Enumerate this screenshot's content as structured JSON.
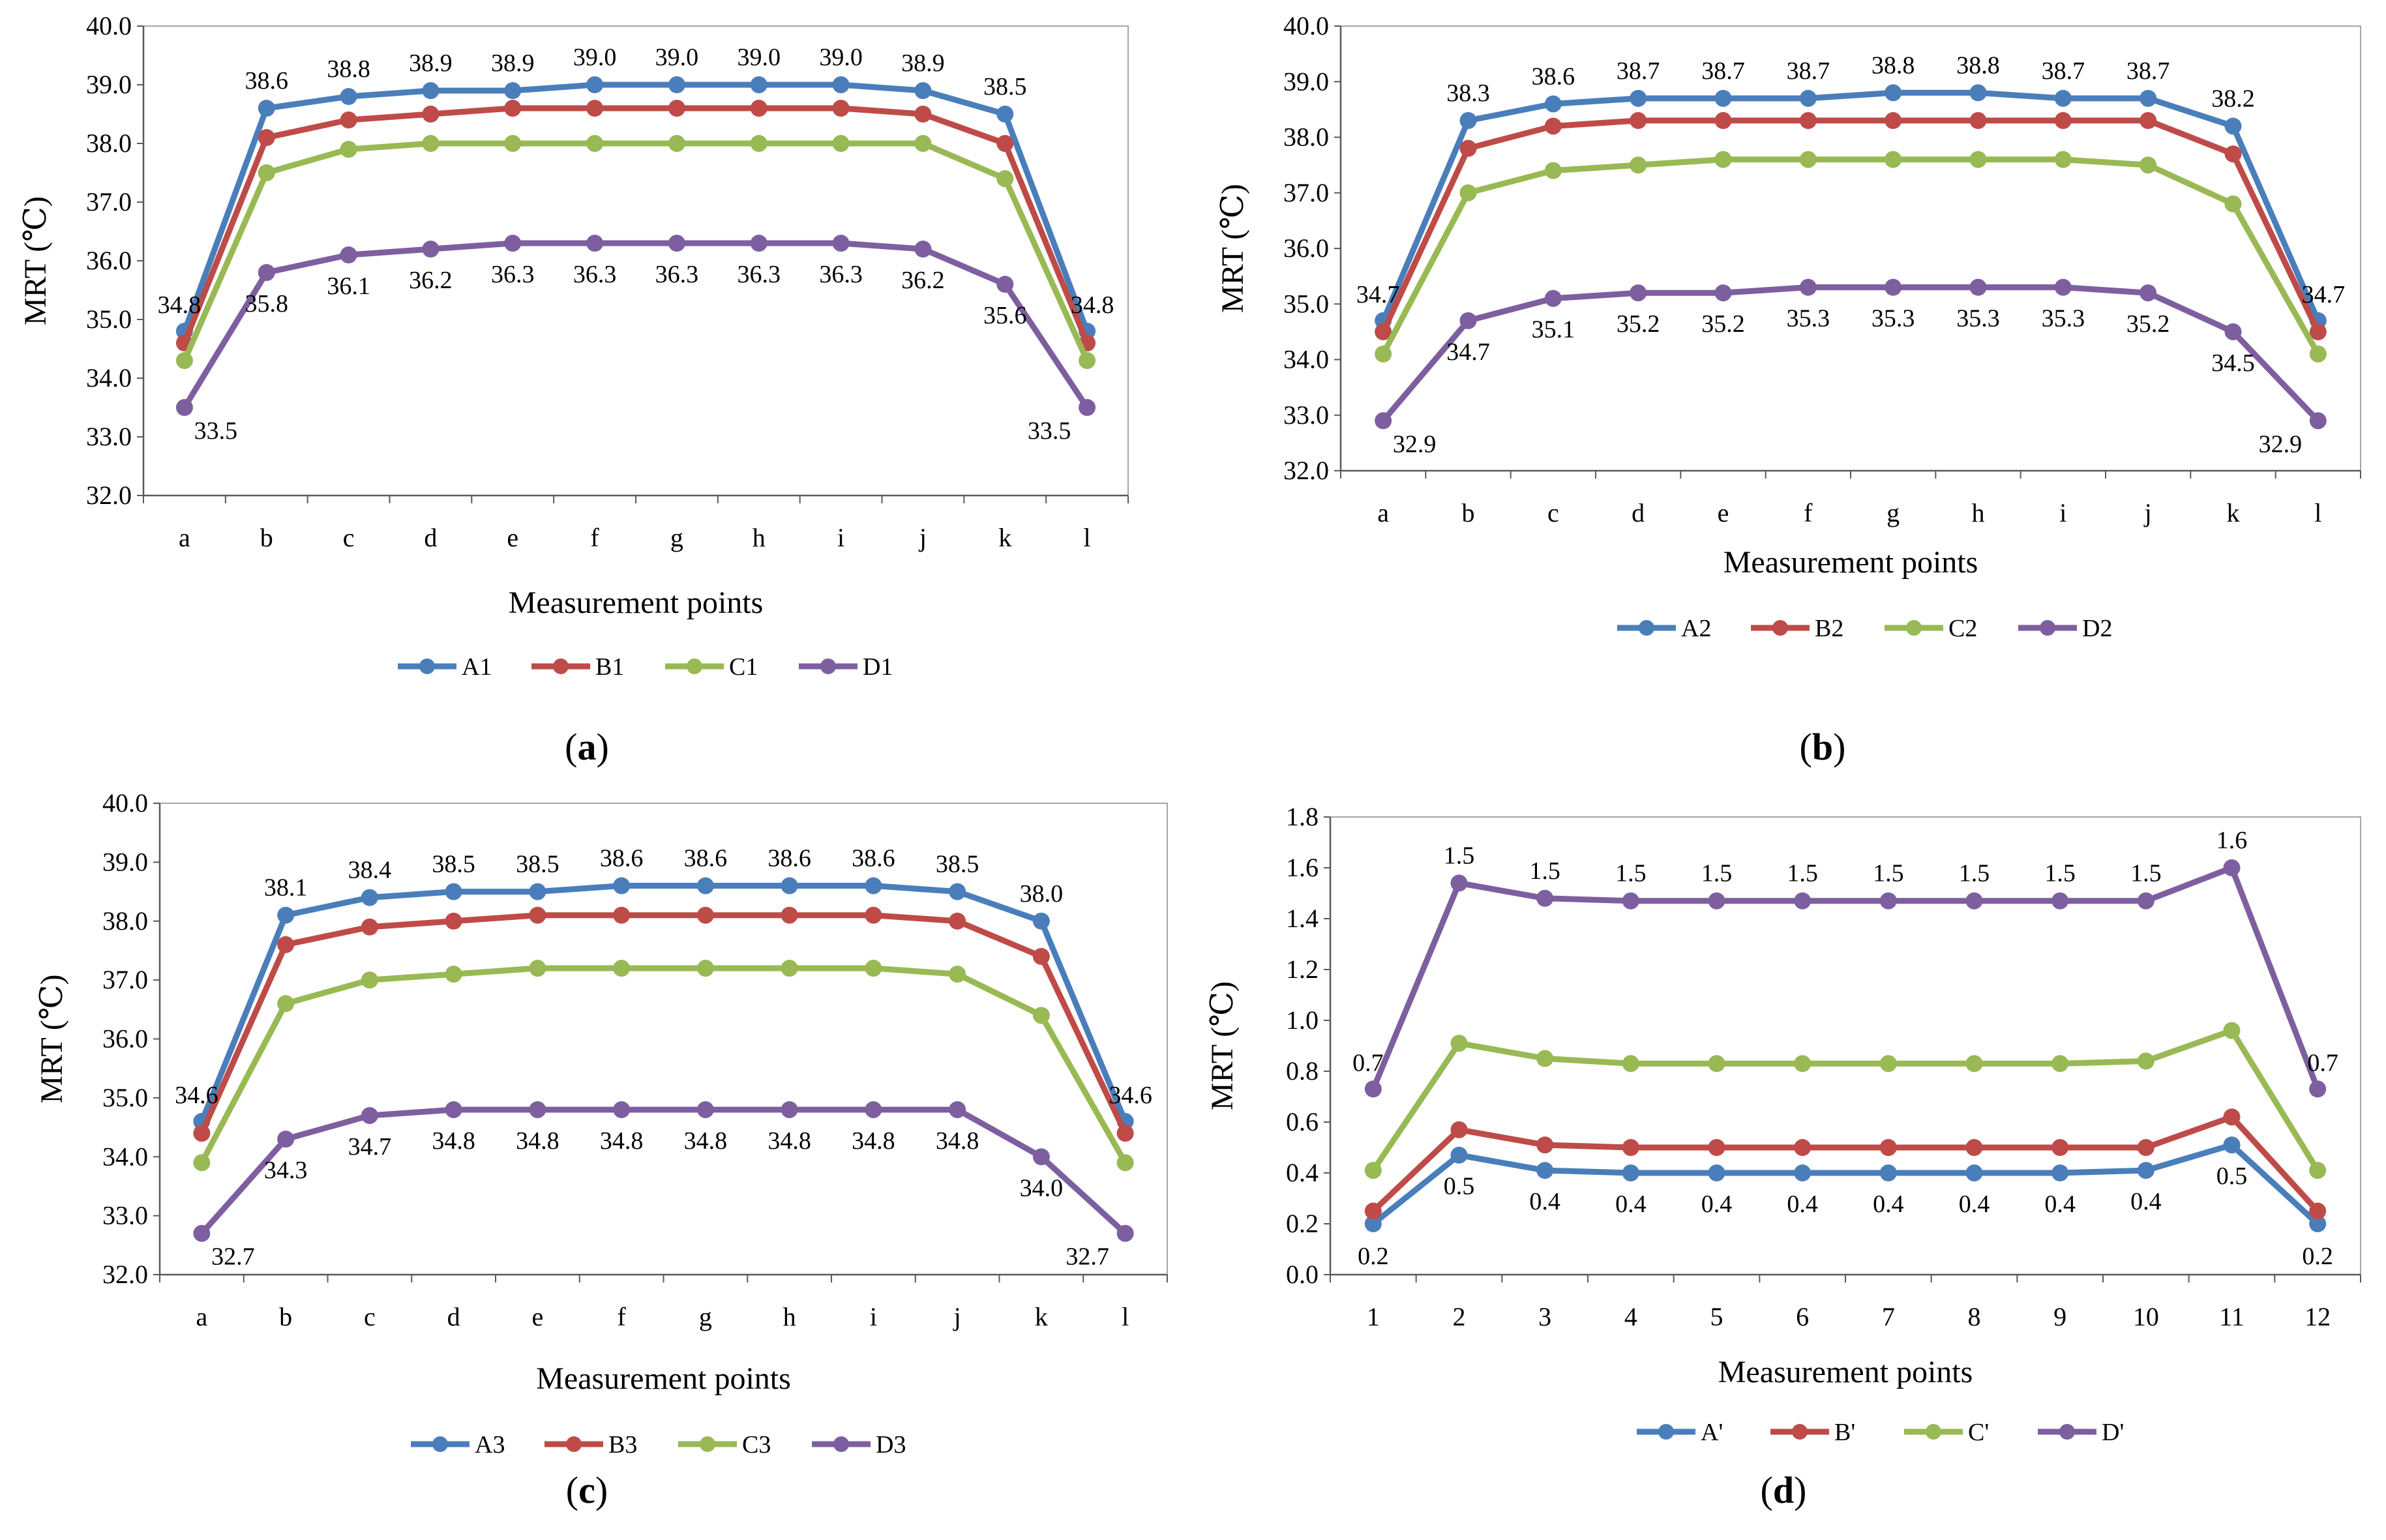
{
  "chart_data": [
    {
      "id": "a",
      "caption": "(a)",
      "caption_letter": "a",
      "type": "line",
      "xlabel": "Measurement points",
      "ylabel": "MRT (℃)",
      "ylim": [
        32.0,
        40.0
      ],
      "ytick_step": 1.0,
      "ytick_decimals": 1,
      "categories": [
        "a",
        "b",
        "c",
        "d",
        "e",
        "f",
        "g",
        "h",
        "i",
        "j",
        "k",
        "l"
      ],
      "legend_position": "bottom",
      "series": [
        {
          "name": "A1",
          "color": "#4a7ebb",
          "values": [
            34.8,
            38.6,
            38.8,
            38.9,
            38.9,
            39.0,
            39.0,
            39.0,
            39.0,
            38.9,
            38.5,
            34.8
          ]
        },
        {
          "name": "B1",
          "color": "#be4b48",
          "values": [
            34.6,
            38.1,
            38.4,
            38.5,
            38.6,
            38.6,
            38.6,
            38.6,
            38.6,
            38.5,
            38.0,
            34.6
          ]
        },
        {
          "name": "C1",
          "color": "#98b954",
          "values": [
            34.3,
            37.5,
            37.9,
            38.0,
            38.0,
            38.0,
            38.0,
            38.0,
            38.0,
            38.0,
            37.4,
            34.3
          ]
        },
        {
          "name": "D1",
          "color": "#7d5fa0",
          "values": [
            33.5,
            35.8,
            36.1,
            36.2,
            36.3,
            36.3,
            36.3,
            36.3,
            36.3,
            36.2,
            35.6,
            33.5
          ]
        }
      ],
      "data_labels": [
        {
          "series": "A1",
          "labels": [
            "34.8",
            "38.6",
            "38.8",
            "38.9",
            "38.9",
            "39.0",
            "39.0",
            "39.0",
            "39.0",
            "38.9",
            "38.5",
            "34.8"
          ],
          "placement": "above"
        },
        {
          "series": "D1",
          "labels": [
            "33.5",
            "35.8",
            "36.1",
            "36.2",
            "36.3",
            "36.3",
            "36.3",
            "36.3",
            "36.3",
            "36.2",
            "35.6",
            "33.5"
          ],
          "placement": "below"
        }
      ]
    },
    {
      "id": "b",
      "caption": "(b)",
      "caption_letter": "b",
      "type": "line",
      "xlabel": "Measurement points",
      "ylabel": "MRT (℃)",
      "ylim": [
        32.0,
        40.0
      ],
      "ytick_step": 1.0,
      "ytick_decimals": 1,
      "categories": [
        "a",
        "b",
        "c",
        "d",
        "e",
        "f",
        "g",
        "h",
        "i",
        "j",
        "k",
        "l"
      ],
      "legend_position": "bottom",
      "series": [
        {
          "name": "A2",
          "color": "#4a7ebb",
          "values": [
            34.7,
            38.3,
            38.6,
            38.7,
            38.7,
            38.7,
            38.8,
            38.8,
            38.7,
            38.7,
            38.2,
            34.7
          ]
        },
        {
          "name": "B2",
          "color": "#be4b48",
          "values": [
            34.5,
            37.8,
            38.2,
            38.3,
            38.3,
            38.3,
            38.3,
            38.3,
            38.3,
            38.3,
            37.7,
            34.5
          ]
        },
        {
          "name": "C2",
          "color": "#98b954",
          "values": [
            34.1,
            37.0,
            37.4,
            37.5,
            37.6,
            37.6,
            37.6,
            37.6,
            37.6,
            37.5,
            36.8,
            34.1
          ]
        },
        {
          "name": "D2",
          "color": "#7d5fa0",
          "values": [
            32.9,
            34.7,
            35.1,
            35.2,
            35.2,
            35.3,
            35.3,
            35.3,
            35.3,
            35.2,
            34.5,
            32.9
          ]
        }
      ],
      "data_labels": [
        {
          "series": "A2",
          "labels": [
            "34.7",
            "38.3",
            "38.6",
            "38.7",
            "38.7",
            "38.7",
            "38.8",
            "38.8",
            "38.7",
            "38.7",
            "38.2",
            "34.7"
          ],
          "placement": "above"
        },
        {
          "series": "D2",
          "labels": [
            "32.9",
            "34.7",
            "35.1",
            "35.2",
            "35.2",
            "35.3",
            "35.3",
            "35.3",
            "35.3",
            "35.2",
            "34.5",
            "32.9"
          ],
          "placement": "below"
        }
      ]
    },
    {
      "id": "c",
      "caption": "(c)",
      "caption_letter": "c",
      "type": "line",
      "xlabel": "Measurement points",
      "ylabel": "MRT (℃)",
      "ylim": [
        32.0,
        40.0
      ],
      "ytick_step": 1.0,
      "ytick_decimals": 1,
      "categories": [
        "a",
        "b",
        "c",
        "d",
        "e",
        "f",
        "g",
        "h",
        "i",
        "j",
        "k",
        "l"
      ],
      "legend_position": "bottom",
      "series": [
        {
          "name": "A3",
          "color": "#4a7ebb",
          "values": [
            34.6,
            38.1,
            38.4,
            38.5,
            38.5,
            38.6,
            38.6,
            38.6,
            38.6,
            38.5,
            38.0,
            34.6
          ]
        },
        {
          "name": "B3",
          "color": "#be4b48",
          "values": [
            34.4,
            37.6,
            37.9,
            38.0,
            38.1,
            38.1,
            38.1,
            38.1,
            38.1,
            38.0,
            37.4,
            34.4
          ]
        },
        {
          "name": "C3",
          "color": "#98b954",
          "values": [
            33.9,
            36.6,
            37.0,
            37.1,
            37.2,
            37.2,
            37.2,
            37.2,
            37.2,
            37.1,
            36.4,
            33.9
          ]
        },
        {
          "name": "D3",
          "color": "#7d5fa0",
          "values": [
            32.7,
            34.3,
            34.7,
            34.8,
            34.8,
            34.8,
            34.8,
            34.8,
            34.8,
            34.8,
            34.0,
            32.7
          ]
        }
      ],
      "data_labels": [
        {
          "series": "A3",
          "labels": [
            "34.6",
            "38.1",
            "38.4",
            "38.5",
            "38.5",
            "38.6",
            "38.6",
            "38.6",
            "38.6",
            "38.5",
            "38.0",
            "34.6"
          ],
          "placement": "above"
        },
        {
          "series": "D3",
          "labels": [
            "32.7",
            "34.3",
            "34.7",
            "34.8",
            "34.8",
            "34.8",
            "34.8",
            "34.8",
            "34.8",
            "34.8",
            "34.0",
            "32.7"
          ],
          "placement": "below"
        }
      ]
    },
    {
      "id": "d",
      "caption": "(d)",
      "caption_letter": "d",
      "type": "line",
      "xlabel": "Measurement points",
      "ylabel": "MRT (℃)",
      "ylim": [
        0.0,
        1.8
      ],
      "ytick_step": 0.2,
      "ytick_decimals": 1,
      "categories": [
        "1",
        "2",
        "3",
        "4",
        "5",
        "6",
        "7",
        "8",
        "9",
        "10",
        "11",
        "12"
      ],
      "legend_position": "bottom",
      "series": [
        {
          "name": "A'",
          "color": "#4a7ebb",
          "values": [
            0.2,
            0.47,
            0.41,
            0.4,
            0.4,
            0.4,
            0.4,
            0.4,
            0.4,
            0.41,
            0.51,
            0.2
          ]
        },
        {
          "name": "B'",
          "color": "#be4b48",
          "values": [
            0.25,
            0.57,
            0.51,
            0.5,
            0.5,
            0.5,
            0.5,
            0.5,
            0.5,
            0.5,
            0.62,
            0.25
          ]
        },
        {
          "name": "C'",
          "color": "#98b954",
          "values": [
            0.41,
            0.91,
            0.85,
            0.83,
            0.83,
            0.83,
            0.83,
            0.83,
            0.83,
            0.84,
            0.96,
            0.41
          ]
        },
        {
          "name": "D'",
          "color": "#7d5fa0",
          "values": [
            0.73,
            1.54,
            1.48,
            1.47,
            1.47,
            1.47,
            1.47,
            1.47,
            1.47,
            1.47,
            1.6,
            0.73
          ]
        }
      ],
      "data_labels": [
        {
          "series": "D'",
          "labels": [
            "0.7",
            "1.5",
            "1.5",
            "1.5",
            "1.5",
            "1.5",
            "1.5",
            "1.5",
            "1.5",
            "1.5",
            "1.6",
            "0.7"
          ],
          "placement": "above"
        },
        {
          "series": "A'",
          "labels": [
            "0.2",
            "0.5",
            "0.4",
            "0.4",
            "0.4",
            "0.4",
            "0.4",
            "0.4",
            "0.4",
            "0.4",
            "0.5",
            "0.2"
          ],
          "placement": "below"
        }
      ]
    }
  ]
}
